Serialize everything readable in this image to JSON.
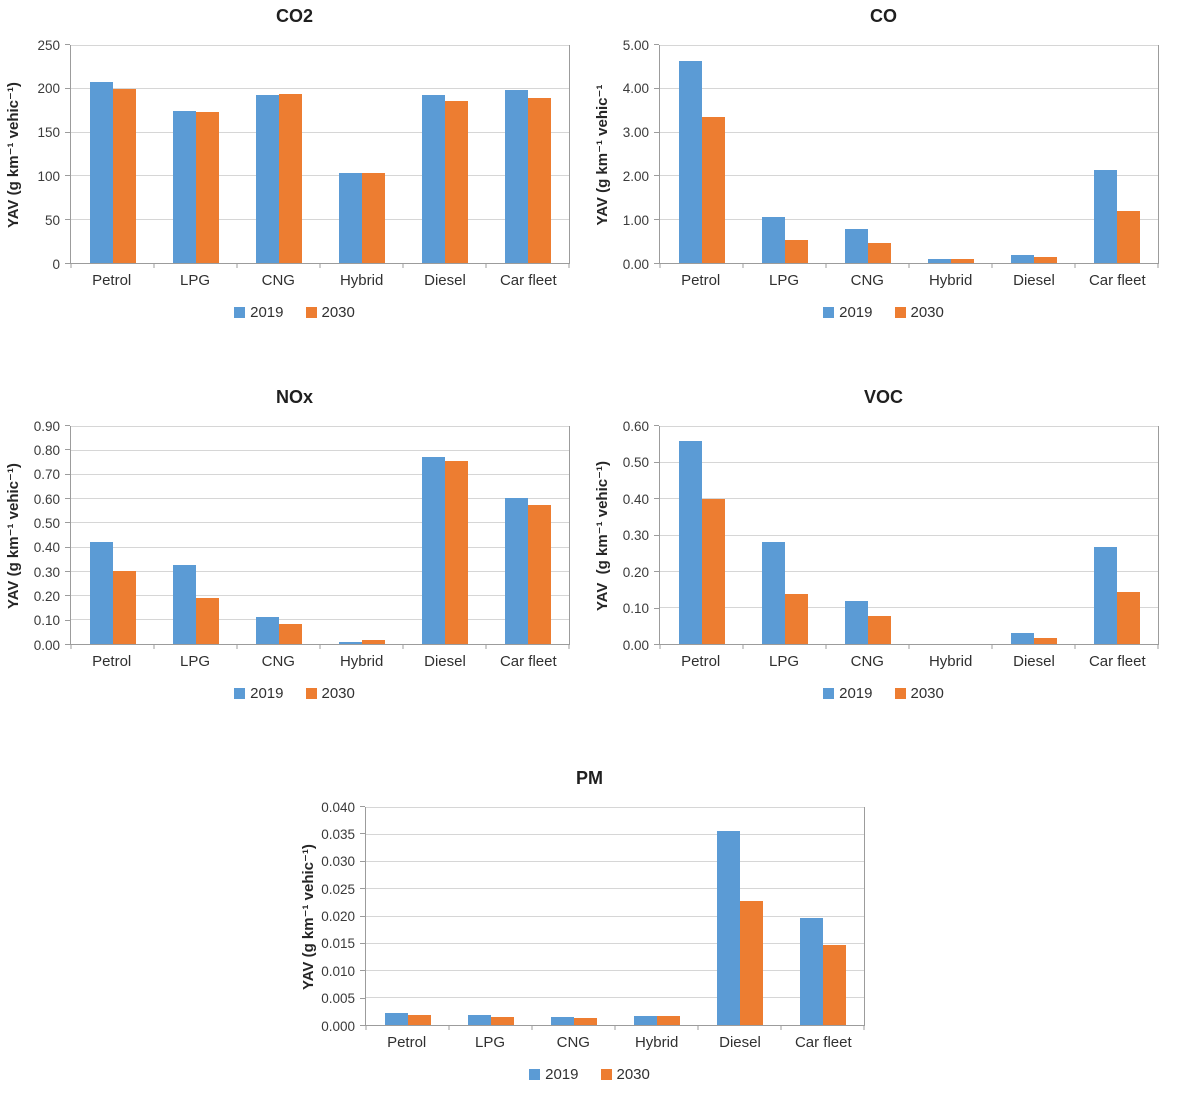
{
  "colors": {
    "series_2019": "#5B9BD5",
    "series_2030": "#ED7D31",
    "gridline": "#D6D6D6",
    "axis": "#9C9C9C",
    "text": "#262626"
  },
  "chart_data": [
    {
      "type": "bar",
      "title": "CO2",
      "ylabel": "YAV (g km⁻¹ vehic⁻¹)",
      "xlabel": "",
      "categories": [
        "Petrol",
        "LPG",
        "CNG",
        "Hybrid",
        "Diesel",
        "Car fleet"
      ],
      "series": [
        {
          "name": "2019",
          "color": "#5B9BD5",
          "values": [
            208,
            175,
            193,
            104,
            193,
            199
          ]
        },
        {
          "name": "2030",
          "color": "#ED7D31",
          "values": [
            201,
            174,
            195,
            104,
            187,
            190
          ]
        }
      ],
      "ylim": [
        0,
        250
      ],
      "ytick_labels": [
        "0",
        "50",
        "100",
        "150",
        "200",
        "250"
      ],
      "grid": true,
      "legend_position": "bottom"
    },
    {
      "type": "bar",
      "title": "CO",
      "ylabel": "YAV (g km⁻¹ vehic⁻¹",
      "xlabel": "",
      "categories": [
        "Petrol",
        "LPG",
        "CNG",
        "Hybrid",
        "Diesel",
        "Car fleet"
      ],
      "series": [
        {
          "name": "2019",
          "color": "#5B9BD5",
          "values": [
            4.66,
            1.07,
            0.79,
            0.09,
            0.19,
            2.15
          ]
        },
        {
          "name": "2030",
          "color": "#ED7D31",
          "values": [
            3.37,
            0.53,
            0.45,
            0.09,
            0.13,
            1.2
          ]
        }
      ],
      "ylim": [
        0,
        5
      ],
      "ytick_labels": [
        "0.00",
        "1.00",
        "2.00",
        "3.00",
        "4.00",
        "5.00"
      ],
      "grid": true,
      "legend_position": "bottom"
    },
    {
      "type": "bar",
      "title": "NOx",
      "ylabel": "YAV (g km⁻¹ vehic⁻¹)",
      "xlabel": "",
      "categories": [
        "Petrol",
        "LPG",
        "CNG",
        "Hybrid",
        "Diesel",
        "Car fleet"
      ],
      "series": [
        {
          "name": "2019",
          "color": "#5B9BD5",
          "values": [
            0.425,
            0.328,
            0.114,
            0.01,
            0.775,
            0.604
          ]
        },
        {
          "name": "2030",
          "color": "#ED7D31",
          "values": [
            0.302,
            0.19,
            0.084,
            0.017,
            0.757,
            0.577
          ]
        }
      ],
      "ylim": [
        0,
        0.9
      ],
      "ytick_labels": [
        "0.00",
        "0.10",
        "0.20",
        "0.30",
        "0.40",
        "0.50",
        "0.60",
        "0.70",
        "0.80",
        "0.90"
      ],
      "grid": true,
      "legend_position": "bottom"
    },
    {
      "type": "bar",
      "title": "VOC",
      "ylabel": "YAV  (g km⁻¹ vehic⁻¹)",
      "xlabel": "",
      "categories": [
        "Petrol",
        "LPG",
        "CNG",
        "Hybrid",
        "Diesel",
        "Car fleet"
      ],
      "series": [
        {
          "name": "2019",
          "color": "#5B9BD5",
          "values": [
            0.561,
            0.281,
            0.118,
            0,
            0.03,
            0.268
          ]
        },
        {
          "name": "2030",
          "color": "#ED7D31",
          "values": [
            0.4,
            0.137,
            0.077,
            0,
            0.017,
            0.145
          ]
        }
      ],
      "ylim": [
        0,
        0.6
      ],
      "ytick_labels": [
        "0.00",
        "0.10",
        "0.20",
        "0.30",
        "0.40",
        "0.50",
        "0.60"
      ],
      "grid": true,
      "legend_position": "bottom"
    },
    {
      "type": "bar",
      "title": "PM",
      "ylabel": "YAV (g km⁻¹ vehic⁻¹)",
      "xlabel": "",
      "categories": [
        "Petrol",
        "LPG",
        "CNG",
        "Hybrid",
        "Diesel",
        "Car fleet"
      ],
      "series": [
        {
          "name": "2019",
          "color": "#5B9BD5",
          "values": [
            0.0022,
            0.0018,
            0.0014,
            0.0017,
            0.0357,
            0.0198
          ]
        },
        {
          "name": "2030",
          "color": "#ED7D31",
          "values": [
            0.0018,
            0.0014,
            0.0013,
            0.0017,
            0.0228,
            0.0148
          ]
        }
      ],
      "ylim": [
        0,
        0.04
      ],
      "ytick_labels": [
        "0.000",
        "0.005",
        "0.010",
        "0.015",
        "0.020",
        "0.025",
        "0.030",
        "0.035",
        "0.040"
      ],
      "grid": true,
      "legend_position": "bottom"
    }
  ]
}
